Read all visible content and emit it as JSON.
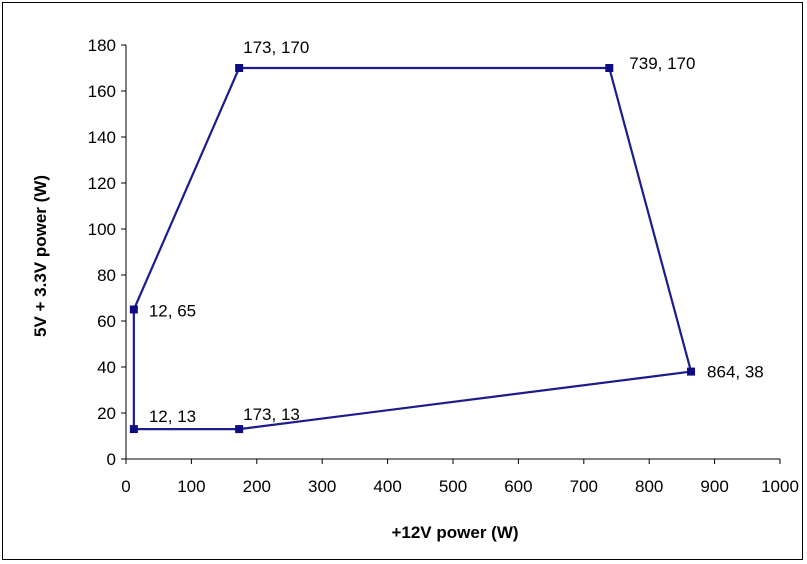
{
  "chart_data": {
    "type": "scatter",
    "xlabel": "+12V power (W)",
    "ylabel": "5V + 3.3V power (W)",
    "xlim": [
      0,
      1000
    ],
    "ylim": [
      0,
      180
    ],
    "xticks": [
      "0",
      "100",
      "200",
      "300",
      "400",
      "500",
      "600",
      "700",
      "800",
      "900",
      "1000"
    ],
    "yticks": [
      "0",
      "20",
      "40",
      "60",
      "80",
      "100",
      "120",
      "140",
      "160",
      "180"
    ],
    "grid": false,
    "legend": "none",
    "series": [
      {
        "line_color": "#1c1c8c",
        "marker_color": "#0d0d80",
        "closed": true,
        "points": [
          {
            "x": 12,
            "y": 13,
            "label": "12, 13"
          },
          {
            "x": 12,
            "y": 65,
            "label": "12, 65"
          },
          {
            "x": 173,
            "y": 170,
            "label": "173, 170"
          },
          {
            "x": 739,
            "y": 170,
            "label": "739, 170"
          },
          {
            "x": 864,
            "y": 38,
            "label": "864, 38"
          },
          {
            "x": 173,
            "y": 13,
            "label": "173, 13"
          }
        ]
      }
    ]
  }
}
